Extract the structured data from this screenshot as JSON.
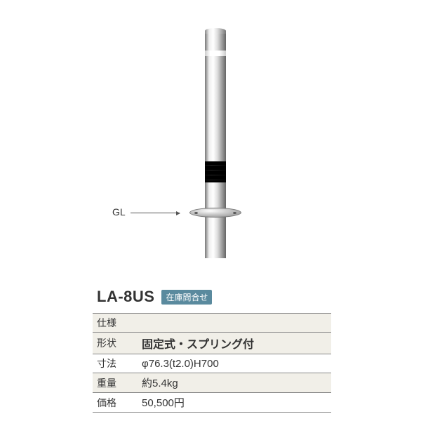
{
  "product": {
    "model": "LA-8US",
    "stock_badge": "在庫問合せ",
    "gl_label": "GL",
    "image": {
      "colors": {
        "steel_light": "#eeeeee",
        "steel_dark": "#666666",
        "spring": "#222222",
        "badge_bg": "#5a8a9e",
        "badge_text": "#ffffff",
        "row_shade": "#f1efe8",
        "border": "#888888"
      }
    }
  },
  "spec": {
    "header": "仕様",
    "rows": [
      {
        "label": "形状",
        "value": "固定式・スプリング付",
        "shaded": true,
        "emph": true
      },
      {
        "label": "寸法",
        "value": "φ76.3(t2.0)H700",
        "shaded": false,
        "emph": false
      },
      {
        "label": "重量",
        "value": "約5.4kg",
        "shaded": true,
        "emph": false
      },
      {
        "label": "価格",
        "value": "50,500円",
        "shaded": false,
        "emph": false
      }
    ]
  }
}
